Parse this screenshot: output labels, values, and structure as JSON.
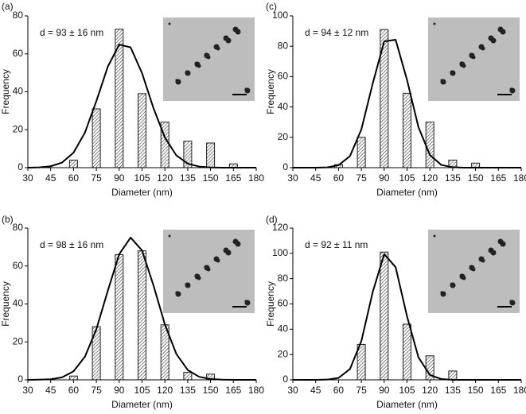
{
  "chart_data": [
    {
      "type": "bar",
      "panel_label": "(a)",
      "annotation": "d = 93 ± 16 nm",
      "xlabel": "Diameter (nm)",
      "ylabel": "Frequency",
      "x": [
        60,
        75,
        90,
        105,
        120,
        135,
        150,
        165
      ],
      "values": [
        4,
        31,
        73,
        39,
        24,
        14,
        13,
        2
      ],
      "fit": {
        "x": [
          30,
          37.5,
          45,
          52.5,
          60,
          67.5,
          75,
          82.5,
          90,
          97.5,
          105,
          112.5,
          120,
          127.5,
          135,
          142.5,
          150,
          157.5,
          165,
          172.5,
          180
        ],
        "values": [
          0,
          0.16,
          0.73,
          2.7,
          7.9,
          18.5,
          35.1,
          53.2,
          64.9,
          63.4,
          49.8,
          31.4,
          15.9,
          6.5,
          2.1,
          0.6,
          0.1,
          0,
          0,
          0,
          0
        ]
      },
      "xlim": [
        30,
        180
      ],
      "xticks": [
        30,
        45,
        60,
        75,
        90,
        105,
        120,
        135,
        150,
        165,
        180
      ],
      "ylim": [
        0,
        80
      ],
      "yticks": [
        0,
        20,
        40,
        60,
        80
      ]
    },
    {
      "type": "bar",
      "panel_label": "(b)",
      "annotation": "d = 98 ± 16 nm",
      "xlabel": "Diameter (nm)",
      "ylabel": "Frequency",
      "x": [
        60,
        75,
        90,
        105,
        120,
        135,
        150
      ],
      "values": [
        2,
        28,
        66,
        68,
        29,
        4,
        3
      ],
      "fit": {
        "x": [
          30,
          37.5,
          45,
          52.5,
          60,
          67.5,
          75,
          82.5,
          90,
          97.5,
          105,
          112.5,
          120,
          127.5,
          135,
          142.5,
          150,
          157.5,
          165,
          172.5,
          180
        ],
        "values": [
          0,
          0.1,
          0.3,
          1.3,
          4.5,
          12.2,
          26.7,
          46.9,
          66.2,
          75,
          68.2,
          49.8,
          29.2,
          13.7,
          5.2,
          1.6,
          0.4,
          0.1,
          0,
          0,
          0
        ]
      },
      "xlim": [
        30,
        180
      ],
      "xticks": [
        30,
        45,
        60,
        75,
        90,
        105,
        120,
        135,
        150,
        165,
        180
      ],
      "ylim": [
        0,
        80
      ],
      "yticks": [
        0,
        20,
        40,
        60,
        80
      ]
    },
    {
      "type": "bar",
      "panel_label": "(c)",
      "annotation": "d = 94 ± 12 nm",
      "xlabel": "Diameter (nm)",
      "ylabel": "Frequency",
      "x": [
        60,
        75,
        90,
        105,
        120,
        135,
        150
      ],
      "values": [
        2,
        20,
        91,
        49,
        30,
        5,
        3
      ],
      "fit": {
        "x": [
          30,
          37.5,
          45,
          52.5,
          60,
          67.5,
          75,
          82.5,
          90,
          97.5,
          105,
          112.5,
          120,
          127.5,
          135,
          142.5,
          150,
          157.5,
          165,
          172.5,
          180
        ],
        "values": [
          0,
          0,
          0,
          0.2,
          1.6,
          7.6,
          25.2,
          55.6,
          83.2,
          84.3,
          57.8,
          26.7,
          8.4,
          1.8,
          0.3,
          0,
          0,
          0,
          0,
          0,
          0
        ]
      },
      "xlim": [
        30,
        180
      ],
      "xticks": [
        30,
        45,
        60,
        75,
        90,
        105,
        120,
        135,
        150,
        165,
        180
      ],
      "ylim": [
        0,
        100
      ],
      "yticks": [
        0,
        20,
        40,
        60,
        80,
        100
      ]
    },
    {
      "type": "bar",
      "panel_label": "(d)",
      "annotation": "d = 92 ± 11 nm",
      "xlabel": "Diameter (nm)",
      "ylabel": "Frequency",
      "x": [
        75,
        90,
        105,
        120,
        135
      ],
      "values": [
        28,
        101,
        44,
        19,
        7
      ],
      "fit": {
        "x": [
          30,
          37.5,
          45,
          52.5,
          60,
          67.5,
          75,
          82.5,
          90,
          97.5,
          105,
          112.5,
          120,
          127.5,
          135,
          142.5,
          150,
          157.5,
          165,
          172.5,
          180
        ],
        "values": [
          0,
          0,
          0,
          0.2,
          1.5,
          8.5,
          30.6,
          69.6,
          99.4,
          89.1,
          50.2,
          17.8,
          3.9,
          0.6,
          0,
          0,
          0,
          0,
          0,
          0,
          0
        ]
      },
      "xlim": [
        30,
        180
      ],
      "xticks": [
        30,
        45,
        60,
        75,
        90,
        105,
        120,
        135,
        150,
        165,
        180
      ],
      "ylim": [
        0,
        120
      ],
      "yticks": [
        0,
        20,
        40,
        60,
        80,
        100,
        120
      ]
    }
  ]
}
